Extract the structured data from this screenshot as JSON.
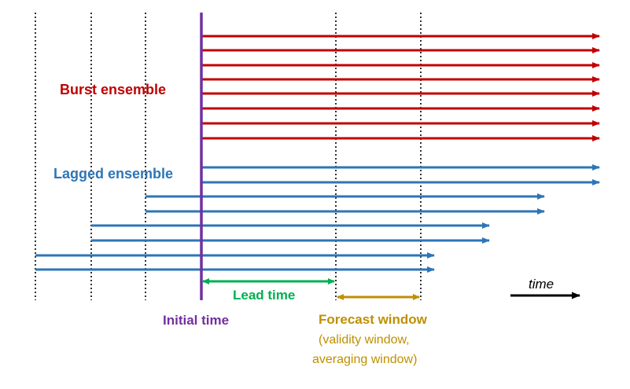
{
  "labels": {
    "burst_ensemble": "Burst ensemble",
    "lagged_ensemble": "Lagged ensemble",
    "initial_time": "Initial time",
    "lead_time": "Lead time",
    "forecast_window": "Forecast window",
    "validity_window": "(validity window,",
    "averaging_window": "averaging window)",
    "time": "time"
  },
  "colors": {
    "burst": "#c00000",
    "lagged": "#2e75b6",
    "initial_time": "#7030a0",
    "lead_time": "#00b050",
    "forecast_window": "#bf9000",
    "time_axis": "#000000",
    "guide_lines": "#000000"
  }
}
